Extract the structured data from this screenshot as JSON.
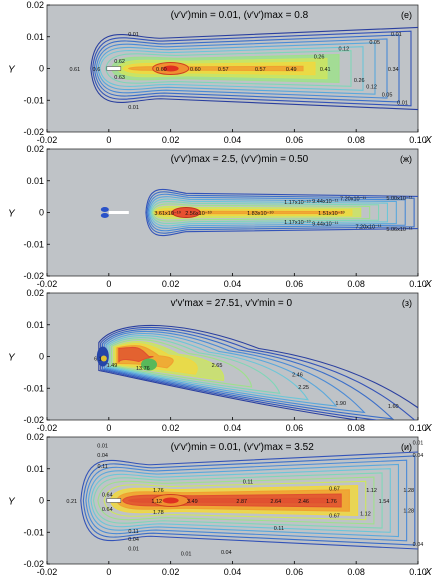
{
  "chart_data": [
    {
      "type": "contour",
      "panel_label": "(е)",
      "title": "(v′v′)min = 0.01, (v′v′)max = 0.8",
      "xlabel": "X",
      "ylabel": "Y",
      "xlim": [
        -0.02,
        0.1
      ],
      "ylim": [
        -0.02,
        0.02
      ],
      "xticks": [
        "-0.02",
        "0",
        "0.02",
        "0.04",
        "0.06",
        "0.08",
        "0.10"
      ],
      "yticks": [
        "0.02",
        "0.01",
        "0",
        "-0.01",
        "-0.02"
      ],
      "contour_labels": [
        {
          "text": "0.01",
          "x": 0.008,
          "y": 0.011
        },
        {
          "text": "0.01",
          "x": 0.093,
          "y": 0.011
        },
        {
          "text": "0.05",
          "x": 0.086,
          "y": 0.0085
        },
        {
          "text": "0.12",
          "x": 0.076,
          "y": 0.0065
        },
        {
          "text": "0.26",
          "x": 0.068,
          "y": 0.004
        },
        {
          "text": "0.61",
          "x": -0.011,
          "y": 0.0
        },
        {
          "text": "0.6",
          "x": -0.004,
          "y": 0.0
        },
        {
          "text": "0.62",
          "x": 0.0035,
          "y": 0.0025
        },
        {
          "text": "0.63",
          "x": 0.0035,
          "y": -0.0025
        },
        {
          "text": "0.60",
          "x": 0.017,
          "y": 0.0
        },
        {
          "text": "0.60",
          "x": 0.028,
          "y": 0.0
        },
        {
          "text": "0.57",
          "x": 0.037,
          "y": 0.0
        },
        {
          "text": "0.57",
          "x": 0.049,
          "y": 0.0
        },
        {
          "text": "0.49",
          "x": 0.059,
          "y": 0.0
        },
        {
          "text": "0.41",
          "x": 0.07,
          "y": 0.0
        },
        {
          "text": "0.34",
          "x": 0.092,
          "y": 0.0
        },
        {
          "text": "0.26",
          "x": 0.081,
          "y": -0.0035
        },
        {
          "text": "0.12",
          "x": 0.085,
          "y": -0.0055
        },
        {
          "text": "0.05",
          "x": 0.09,
          "y": -0.008
        },
        {
          "text": "0.01",
          "x": 0.095,
          "y": -0.0105
        },
        {
          "text": "0.01",
          "x": 0.008,
          "y": -0.012
        }
      ]
    },
    {
      "type": "contour",
      "panel_label": "(ж)",
      "title": "(v′v′)max = 2.5, (v′v′)min = 0.50",
      "xlabel": "X",
      "ylabel": "Y",
      "xlim": [
        -0.02,
        0.1
      ],
      "ylim": [
        -0.02,
        0.02
      ],
      "xticks": [
        "-0.02",
        "0",
        "0.02",
        "0.04",
        "0.06",
        "0.08",
        "0.10"
      ],
      "yticks": [
        "0.02",
        "0.01",
        "0",
        "-0.01",
        "-0.02"
      ],
      "contour_labels": [
        {
          "text": "3.61x10⁻¹⁰",
          "x": 0.019,
          "y": 0.0
        },
        {
          "text": "2.56x10⁻¹⁰",
          "x": 0.029,
          "y": 0.0
        },
        {
          "text": "1.83x10⁻¹⁰",
          "x": 0.049,
          "y": 0.0
        },
        {
          "text": "1.17x10⁻¹⁰",
          "x": 0.061,
          "y": 0.0035
        },
        {
          "text": "9.44x10⁻¹¹",
          "x": 0.07,
          "y": 0.0038
        },
        {
          "text": "7.20x10⁻¹¹",
          "x": 0.079,
          "y": 0.0045
        },
        {
          "text": "5.00x10⁻¹¹",
          "x": 0.094,
          "y": 0.0048
        },
        {
          "text": "1.51x10⁻¹⁰",
          "x": 0.072,
          "y": 0.0
        },
        {
          "text": "1.17x10⁻¹⁰",
          "x": 0.061,
          "y": -0.0028
        },
        {
          "text": "9.44x10⁻¹¹",
          "x": 0.07,
          "y": -0.0033
        },
        {
          "text": "7.20x10⁻¹¹",
          "x": 0.084,
          "y": -0.0042
        },
        {
          "text": "5.06x10⁻¹¹",
          "x": 0.094,
          "y": -0.005
        }
      ]
    },
    {
      "type": "contour",
      "panel_label": "(з)",
      "title": "v′v′max = 27.51, v′v′min = 0",
      "xlabel": "X",
      "ylabel": "Y",
      "xlim": [
        -0.02,
        0.1
      ],
      "ylim": [
        -0.02,
        0.02
      ],
      "xticks": [
        "-0.02",
        "0",
        "0.02",
        "0.04",
        "0.06",
        "0.08",
        "0.10"
      ],
      "yticks": [
        "0.02",
        "0.01",
        "0",
        "-0.01",
        "-0.02"
      ],
      "contour_labels": [
        {
          "text": "6.1",
          "x": -0.0035,
          "y": -0.0005
        },
        {
          "text": "1.49",
          "x": 0.001,
          "y": -0.0025
        },
        {
          "text": "13.76",
          "x": 0.011,
          "y": -0.0035
        },
        {
          "text": "2.65",
          "x": 0.035,
          "y": -0.0025
        },
        {
          "text": "2.46",
          "x": 0.061,
          "y": -0.0055
        },
        {
          "text": "2.25",
          "x": 0.063,
          "y": -0.0095
        },
        {
          "text": "1.90",
          "x": 0.075,
          "y": -0.0145
        },
        {
          "text": "1.60",
          "x": 0.092,
          "y": -0.0155
        }
      ]
    },
    {
      "type": "contour",
      "panel_label": "(и)",
      "title": "(v′v′)min = 0.01, (v′v′)max = 3.52",
      "xlabel": "X",
      "ylabel": "Y",
      "xlim": [
        -0.02,
        0.1
      ],
      "ylim": [
        -0.02,
        0.02
      ],
      "xticks": [
        "-0.02",
        "0",
        "0.02",
        "0.04",
        "0.06",
        "0.08",
        "0.10"
      ],
      "yticks": [
        "0.02",
        "0.01",
        "0",
        "-0.01",
        "-0.02"
      ],
      "contour_labels": [
        {
          "text": "0.01",
          "x": -0.002,
          "y": 0.0175
        },
        {
          "text": "0.04",
          "x": -0.002,
          "y": 0.0145
        },
        {
          "text": "0.11",
          "x": -0.002,
          "y": 0.011
        },
        {
          "text": "0.21",
          "x": -0.012,
          "y": 0.0
        },
        {
          "text": "0.64",
          "x": -0.0005,
          "y": 0.002
        },
        {
          "text": "0.64",
          "x": -0.0005,
          "y": -0.0025
        },
        {
          "text": "1.76",
          "x": 0.016,
          "y": 0.0035
        },
        {
          "text": "1.12",
          "x": 0.0155,
          "y": 0.0
        },
        {
          "text": "1.78",
          "x": 0.016,
          "y": -0.0035
        },
        {
          "text": "3.49",
          "x": 0.027,
          "y": 0.0
        },
        {
          "text": "2.87",
          "x": 0.043,
          "y": 0.0
        },
        {
          "text": "2.64",
          "x": 0.054,
          "y": 0.0
        },
        {
          "text": "2.46",
          "x": 0.063,
          "y": 0.0
        },
        {
          "text": "1.76",
          "x": 0.072,
          "y": 0.0
        },
        {
          "text": "1.54",
          "x": 0.089,
          "y": 0.0
        },
        {
          "text": "0.67",
          "x": 0.073,
          "y": 0.004
        },
        {
          "text": "1.12",
          "x": 0.085,
          "y": 0.0035
        },
        {
          "text": "1.28",
          "x": 0.097,
          "y": 0.0035
        },
        {
          "text": "0.11",
          "x": 0.045,
          "y": 0.0062
        },
        {
          "text": "0.67",
          "x": 0.073,
          "y": -0.0045
        },
        {
          "text": "1.12",
          "x": 0.083,
          "y": -0.004
        },
        {
          "text": "1.28",
          "x": 0.097,
          "y": -0.003
        },
        {
          "text": "0.11",
          "x": 0.008,
          "y": -0.0095
        },
        {
          "text": "0.04",
          "x": 0.008,
          "y": -0.012
        },
        {
          "text": "0.01",
          "x": 0.008,
          "y": -0.015
        },
        {
          "text": "0.01",
          "x": 0.025,
          "y": -0.0165
        },
        {
          "text": "0.04",
          "x": 0.038,
          "y": -0.016
        },
        {
          "text": "0.11",
          "x": 0.055,
          "y": -0.0085
        },
        {
          "text": "0.01",
          "x": 0.1,
          "y": 0.0185
        },
        {
          "text": "0.04",
          "x": 0.1,
          "y": 0.0145
        },
        {
          "text": "0.04",
          "x": 0.1,
          "y": -0.0135
        }
      ]
    }
  ]
}
